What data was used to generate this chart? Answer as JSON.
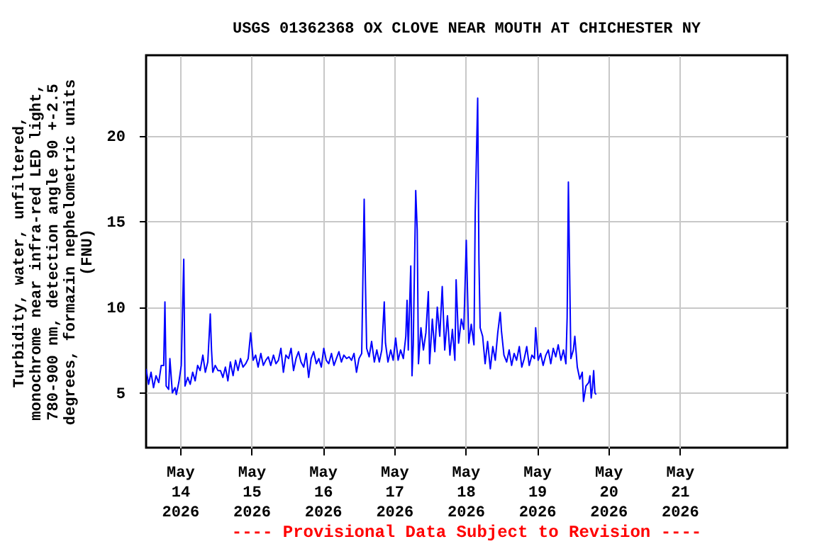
{
  "chart_data": {
    "type": "line",
    "title": "USGS 01362368 OX CLOVE NEAR MOUTH AT CHICHESTER NY",
    "ylabel": "Turbidity, water, unfiltered,\nmonochrome near infra-red LED light,\n780-900 nm, detection angle 90 +-2.5\ndegrees, formazin nephelometric units\n(FNU)",
    "annotations": [
      "---- Provisional Data Subject to Revision ----"
    ],
    "x": [
      "2026-05-13T12:35",
      "2026-05-13T13:25",
      "2026-05-13T14:15",
      "2026-05-13T15:05",
      "2026-05-13T15:55",
      "2026-05-13T16:50",
      "2026-05-13T17:40",
      "2026-05-13T18:30",
      "2026-05-13T18:55",
      "2026-05-13T19:20",
      "2026-05-13T20:10",
      "2026-05-13T20:35",
      "2026-05-13T21:25",
      "2026-05-13T22:20",
      "2026-05-13T22:45",
      "2026-05-13T23:35",
      "2026-05-14T00:25",
      "2026-05-14T01:15",
      "2026-05-14T01:40",
      "2026-05-14T02:35",
      "2026-05-14T03:25",
      "2026-05-14T04:15",
      "2026-05-14T05:05",
      "2026-05-14T05:55",
      "2026-05-14T06:45",
      "2026-05-14T07:40",
      "2026-05-14T08:30",
      "2026-05-14T09:20",
      "2026-05-14T10:10",
      "2026-05-14T10:35",
      "2026-05-14T11:00",
      "2026-05-14T11:50",
      "2026-05-14T12:45",
      "2026-05-14T13:35",
      "2026-05-14T14:25",
      "2026-05-14T15:15",
      "2026-05-14T16:05",
      "2026-05-14T16:55",
      "2026-05-14T17:50",
      "2026-05-14T18:40",
      "2026-05-14T19:30",
      "2026-05-14T20:20",
      "2026-05-14T21:10",
      "2026-05-14T22:05",
      "2026-05-14T22:55",
      "2026-05-14T23:45",
      "2026-05-15T00:35",
      "2026-05-15T01:25",
      "2026-05-15T02:15",
      "2026-05-15T03:10",
      "2026-05-15T04:00",
      "2026-05-15T04:50",
      "2026-05-15T05:40",
      "2026-05-15T06:30",
      "2026-05-15T07:25",
      "2026-05-15T08:15",
      "2026-05-15T09:05",
      "2026-05-15T09:55",
      "2026-05-15T10:45",
      "2026-05-15T11:35",
      "2026-05-15T12:30",
      "2026-05-15T13:20",
      "2026-05-15T14:10",
      "2026-05-15T15:00",
      "2026-05-15T15:50",
      "2026-05-15T16:40",
      "2026-05-15T17:35",
      "2026-05-15T18:25",
      "2026-05-15T19:15",
      "2026-05-15T20:05",
      "2026-05-15T20:55",
      "2026-05-15T21:50",
      "2026-05-15T22:40",
      "2026-05-15T23:30",
      "2026-05-16T00:20",
      "2026-05-16T01:10",
      "2026-05-16T02:00",
      "2026-05-16T02:55",
      "2026-05-16T03:45",
      "2026-05-16T04:35",
      "2026-05-16T05:25",
      "2026-05-16T06:15",
      "2026-05-16T07:05",
      "2026-05-16T08:00",
      "2026-05-16T08:50",
      "2026-05-16T09:40",
      "2026-05-16T10:30",
      "2026-05-16T11:20",
      "2026-05-16T12:10",
      "2026-05-16T13:05",
      "2026-05-16T13:55",
      "2026-05-16T14:20",
      "2026-05-16T14:45",
      "2026-05-16T15:35",
      "2026-05-16T16:25",
      "2026-05-16T17:20",
      "2026-05-16T18:10",
      "2026-05-16T19:00",
      "2026-05-16T19:50",
      "2026-05-16T20:40",
      "2026-05-16T21:05",
      "2026-05-16T21:55",
      "2026-05-16T22:50",
      "2026-05-16T23:40",
      "2026-05-17T00:30",
      "2026-05-17T01:20",
      "2026-05-17T02:10",
      "2026-05-17T03:05",
      "2026-05-17T03:55",
      "2026-05-17T04:20",
      "2026-05-17T04:45",
      "2026-05-17T05:35",
      "2026-05-17T06:00",
      "2026-05-17T06:25",
      "2026-05-17T07:15",
      "2026-05-17T07:45",
      "2026-05-17T08:10",
      "2026-05-17T09:00",
      "2026-05-17T09:50",
      "2026-05-17T10:40",
      "2026-05-17T11:30",
      "2026-05-17T11:55",
      "2026-05-17T12:50",
      "2026-05-17T13:40",
      "2026-05-17T14:30",
      "2026-05-17T15:20",
      "2026-05-17T16:10",
      "2026-05-17T17:00",
      "2026-05-17T17:55",
      "2026-05-17T18:45",
      "2026-05-17T19:35",
      "2026-05-17T20:25",
      "2026-05-17T20:50",
      "2026-05-17T21:40",
      "2026-05-17T22:35",
      "2026-05-17T23:25",
      "2026-05-18T00:15",
      "2026-05-18T01:05",
      "2026-05-18T01:55",
      "2026-05-18T02:50",
      "2026-05-18T03:15",
      "2026-05-18T04:05",
      "2026-05-18T04:30",
      "2026-05-18T04:55",
      "2026-05-18T05:45",
      "2026-05-18T06:35",
      "2026-05-18T07:25",
      "2026-05-18T08:20",
      "2026-05-18T09:10",
      "2026-05-18T10:00",
      "2026-05-18T10:50",
      "2026-05-18T11:40",
      "2026-05-18T12:05",
      "2026-05-18T12:55",
      "2026-05-18T13:50",
      "2026-05-18T14:40",
      "2026-05-18T15:30",
      "2026-05-18T16:20",
      "2026-05-18T17:10",
      "2026-05-18T18:05",
      "2026-05-18T18:55",
      "2026-05-18T19:45",
      "2026-05-18T20:35",
      "2026-05-18T21:25",
      "2026-05-18T22:20",
      "2026-05-18T23:10",
      "2026-05-18T23:35",
      "2026-05-19T00:25",
      "2026-05-19T01:15",
      "2026-05-19T02:05",
      "2026-05-19T03:00",
      "2026-05-19T03:50",
      "2026-05-19T04:40",
      "2026-05-19T05:30",
      "2026-05-19T06:20",
      "2026-05-19T07:10",
      "2026-05-19T08:05",
      "2026-05-19T08:55",
      "2026-05-19T09:45",
      "2026-05-19T10:10",
      "2026-05-19T10:35",
      "2026-05-19T11:00",
      "2026-05-19T11:25",
      "2026-05-19T12:15",
      "2026-05-19T12:45",
      "2026-05-19T13:35",
      "2026-05-19T14:25",
      "2026-05-19T15:15",
      "2026-05-19T15:40",
      "2026-05-19T16:30",
      "2026-05-19T17:25",
      "2026-05-19T17:50",
      "2026-05-19T18:15",
      "2026-05-19T18:40",
      "2026-05-19T19:05",
      "2026-05-19T19:30",
      "2026-05-19T19:55"
    ],
    "series": [
      {
        "color": "#0000ff",
        "values": [
          6.4,
          5.5,
          6.2,
          5.3,
          6.0,
          5.6,
          6.6,
          6.6,
          10.3,
          5.4,
          5.2,
          7.0,
          5.0,
          5.3,
          4.9,
          5.6,
          6.6,
          12.8,
          5.4,
          5.9,
          5.5,
          6.2,
          5.7,
          6.6,
          6.3,
          7.2,
          6.2,
          6.8,
          9.6,
          7.5,
          6.2,
          6.6,
          6.3,
          6.3,
          5.9,
          6.5,
          5.7,
          6.8,
          6.0,
          6.9,
          6.3,
          7.0,
          6.5,
          6.7,
          7.0,
          8.5,
          6.9,
          7.2,
          6.5,
          7.3,
          6.6,
          6.9,
          7.1,
          6.6,
          7.2,
          6.7,
          6.9,
          7.6,
          6.2,
          7.2,
          7.0,
          7.6,
          6.3,
          7.0,
          7.4,
          6.8,
          6.5,
          7.3,
          5.9,
          7.0,
          7.4,
          6.7,
          7.0,
          6.5,
          7.6,
          6.9,
          6.7,
          7.3,
          6.6,
          7.0,
          7.4,
          6.8,
          7.2,
          7.0,
          7.1,
          6.9,
          7.3,
          6.2,
          7.0,
          7.3,
          16.3,
          11.5,
          7.6,
          7.1,
          8.0,
          6.8,
          7.5,
          6.8,
          7.5,
          10.3,
          7.9,
          6.8,
          7.5,
          6.9,
          8.2,
          6.9,
          7.5,
          7.0,
          8.3,
          10.4,
          7.5,
          12.4,
          6.0,
          7.8,
          16.8,
          14.5,
          6.7,
          8.8,
          7.5,
          8.5,
          10.9,
          6.7,
          9.3,
          7.4,
          10.0,
          8.3,
          11.2,
          7.5,
          9.5,
          7.2,
          8.7,
          6.9,
          11.6,
          7.9,
          9.3,
          8.7,
          13.9,
          7.9,
          9.0,
          7.8,
          15.5,
          22.2,
          12.8,
          8.8,
          8.3,
          6.7,
          8.0,
          6.4,
          7.7,
          6.9,
          8.5,
          9.7,
          8.6,
          7.2,
          6.8,
          7.5,
          6.6,
          7.3,
          6.9,
          7.7,
          6.5,
          7.0,
          7.7,
          6.6,
          7.2,
          7.0,
          8.8,
          6.9,
          7.3,
          6.6,
          7.2,
          7.5,
          6.7,
          7.6,
          7.1,
          7.8,
          6.9,
          7.5,
          6.7,
          9.4,
          17.3,
          12.1,
          7.0,
          7.5,
          8.3,
          6.5,
          5.8,
          6.2,
          4.5,
          5.4,
          5.6,
          6.0,
          4.7,
          5.3,
          6.3,
          5.0,
          4.9
        ]
      }
    ],
    "xlim": [
      "2026-05-13T12:35",
      "2026-05-22T12:10"
    ],
    "xticks": [
      {
        "value": "2026-05-14",
        "label": "May 14 2026"
      },
      {
        "value": "2026-05-15",
        "label": "May 15 2026"
      },
      {
        "value": "2026-05-16",
        "label": "May 16 2026"
      },
      {
        "value": "2026-05-17",
        "label": "May 17 2026"
      },
      {
        "value": "2026-05-18",
        "label": "May 18 2026"
      },
      {
        "value": "2026-05-19",
        "label": "May 19 2026"
      },
      {
        "value": "2026-05-20",
        "label": "May 20 2026"
      },
      {
        "value": "2026-05-21",
        "label": "May 21 2026"
      }
    ],
    "ylim": [
      1.8,
      24.7
    ],
    "yticks": [
      5,
      10,
      15,
      20
    ],
    "grid": true
  }
}
